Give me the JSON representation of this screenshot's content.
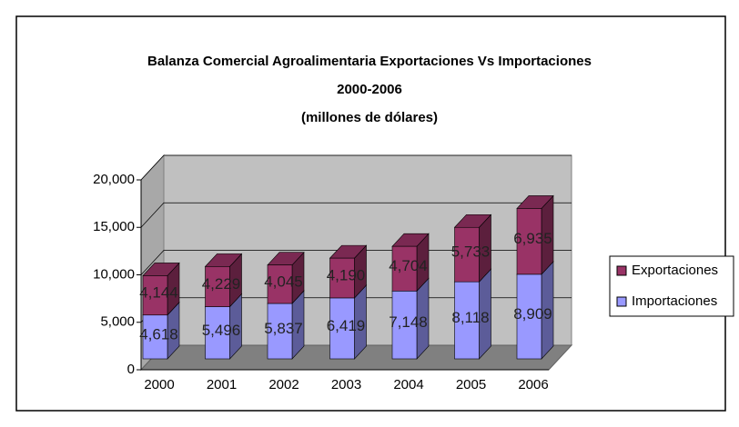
{
  "chart_data": {
    "type": "bar3d-stacked",
    "title": [
      "Balanza Comercial Agroalimentaria Exportaciones Vs Importaciones",
      "2000-2006",
      "(millones de dólares)"
    ],
    "categories": [
      "2000",
      "2001",
      "2002",
      "2003",
      "2004",
      "2005",
      "2006"
    ],
    "series": [
      {
        "name": "Importaciones",
        "color": "#9999ff",
        "values": [
          4618,
          5496,
          5837,
          6419,
          7148,
          8118,
          8909
        ],
        "value_labels": [
          "4,618",
          "5,496",
          "5,837",
          "6,419",
          "7,148",
          "8,118",
          "8,909"
        ]
      },
      {
        "name": "Exportaciones",
        "color": "#993366",
        "values": [
          4144,
          4229,
          4045,
          4190,
          4704,
          5733,
          6935
        ],
        "value_labels": [
          "4,144",
          "4,229",
          "4,045",
          "4,190",
          "4,704",
          "5,733",
          "6,935"
        ]
      }
    ],
    "ylim": [
      0,
      20000
    ],
    "yticks": [
      0,
      {
        "value": 5000,
        "label": "5,000"
      },
      {
        "value": 10000,
        "label": "10,000"
      },
      {
        "value": 15000,
        "label": "15,000"
      },
      {
        "value": 20000,
        "label": "20,000"
      }
    ],
    "grid": true,
    "legend": "right"
  }
}
